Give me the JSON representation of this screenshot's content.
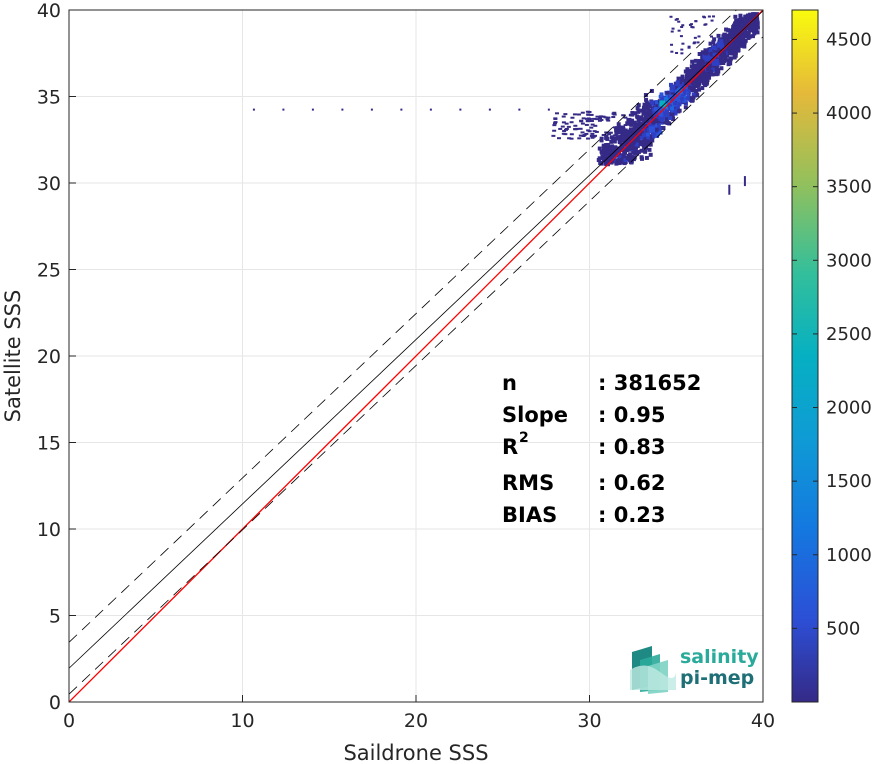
{
  "chart_data": {
    "type": "heatmap",
    "xlabel": "Saildrone SSS",
    "ylabel": "Satellite SSS",
    "xlim": [
      0,
      40
    ],
    "ylim": [
      0,
      40
    ],
    "x_ticks": [
      "0",
      "10",
      "20",
      "30",
      "40"
    ],
    "y_ticks": [
      "0",
      "5",
      "10",
      "15",
      "20",
      "25",
      "30",
      "35",
      "40"
    ],
    "grid": true,
    "colormap": "parula",
    "colorbar": {
      "range": [
        0,
        4700
      ],
      "ticks": [
        "500",
        "1000",
        "1500",
        "2000",
        "2500",
        "3000",
        "3500",
        "4000",
        "4500"
      ]
    },
    "reference_lines": [
      {
        "kind": "identity",
        "color": "#ff0000",
        "y_at_x0": 0,
        "y_at_x40": 40
      },
      {
        "kind": "regression",
        "color": "#000000",
        "y_at_x0": 1.95,
        "y_at_x40": 39.95
      },
      {
        "kind": "regression-upper-dashed",
        "color": "#000000",
        "y_at_x0": 3.45,
        "y_at_x40": 41.45
      },
      {
        "kind": "regression-lower-dashed",
        "color": "#000000",
        "y_at_x0": 0.45,
        "y_at_x40": 38.45
      }
    ],
    "density_clusters": [
      {
        "x": 34.2,
        "y": 34.6,
        "count": 2200
      },
      {
        "x": 33.6,
        "y": 33.1,
        "count": 900
      },
      {
        "x": 35.2,
        "y": 35.3,
        "count": 1000
      },
      {
        "x": 36.8,
        "y": 37.2,
        "count": 500
      },
      {
        "x": 37.5,
        "y": 38.0,
        "count": 350
      },
      {
        "x": 31.5,
        "y": 31.7,
        "count": 300
      },
      {
        "x": 32.5,
        "y": 32.4,
        "count": 250
      }
    ],
    "isolated_points": [
      {
        "x": 10.6,
        "y": 34.3
      },
      {
        "x": 12.3,
        "y": 34.3
      },
      {
        "x": 14.0,
        "y": 34.3
      },
      {
        "x": 15.7,
        "y": 34.3
      },
      {
        "x": 17.4,
        "y": 34.3
      },
      {
        "x": 19.1,
        "y": 34.3
      },
      {
        "x": 20.8,
        "y": 34.3
      },
      {
        "x": 22.5,
        "y": 34.3
      },
      {
        "x": 24.2,
        "y": 34.3
      },
      {
        "x": 25.9,
        "y": 34.3
      },
      {
        "x": 27.6,
        "y": 34.3
      },
      {
        "x": 38.0,
        "y": 29.9
      },
      {
        "x": 38.9,
        "y": 30.4
      }
    ],
    "statistics": [
      {
        "key": "n",
        "value": ": 381652"
      },
      {
        "key": "Slope",
        "value": ": 0.95"
      },
      {
        "key": "R",
        "sup": "2",
        "value": ": 0.83"
      },
      {
        "key": "RMS",
        "value": ": 0.62"
      },
      {
        "key": "BIAS",
        "value": ": 0.23"
      }
    ]
  },
  "logo": {
    "line1": "salinity",
    "line2": "pi-mep",
    "color1": "#2aaa9a",
    "color2": "#1f6f77"
  }
}
